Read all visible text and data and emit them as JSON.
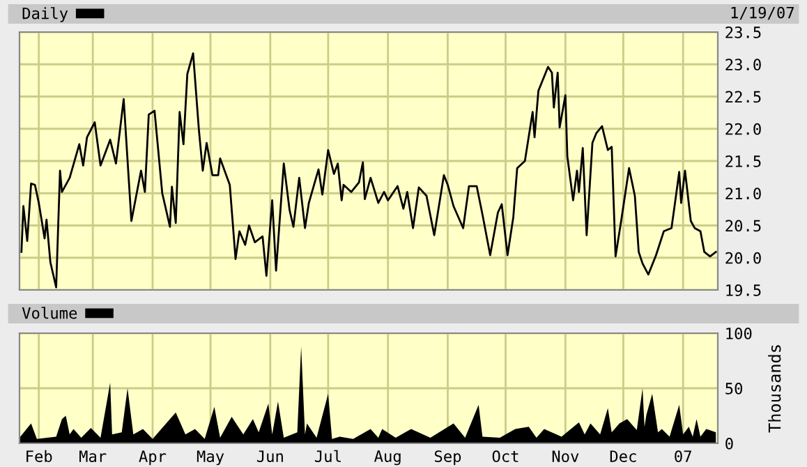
{
  "chart_data": [
    {
      "type": "line",
      "xlim": [
        "2006-01-22",
        "2007-01-19"
      ],
      "ylim": [
        19.5,
        23.5
      ],
      "yticks": [
        19.5,
        {
          "value": 20,
          "label": "20.0"
        },
        20.5,
        {
          "value": 21,
          "label": "21.0"
        },
        21.5,
        {
          "value": 22,
          "label": "22.0"
        },
        22.5,
        {
          "value": 23,
          "label": "23.0"
        },
        23.5
      ],
      "xticks": [
        {
          "value": "2006-02-01",
          "label": null
        },
        {
          "value": "2006-03-01",
          "label": null
        },
        {
          "value": "2006-04-01",
          "label": null
        },
        {
          "value": "2006-05-01",
          "label": null
        },
        {
          "value": "2006-06-01",
          "label": null
        },
        {
          "value": "2006-07-01",
          "label": null
        },
        {
          "value": "2006-08-01",
          "label": null
        },
        {
          "value": "2006-09-01",
          "label": null
        },
        {
          "value": "2006-10-01",
          "label": null
        },
        {
          "value": "2006-11-01",
          "label": null
        },
        {
          "value": "2006-12-01",
          "label": null
        },
        {
          "value": "2007-01-01",
          "label": null
        }
      ],
      "tick_labels": "y",
      "grid": true,
      "legend": "top left",
      "annotations": [
        "1/19/07"
      ],
      "series": [
        {
          "name": "Daily",
          "color": "#000000",
          "x": [
            "2006-01-23",
            "2006-01-24",
            "2006-01-26",
            "2006-01-28",
            "2006-01-30",
            "2006-02-01",
            "2006-02-04",
            "2006-02-05",
            "2006-02-07",
            "2006-02-10",
            "2006-02-12",
            "2006-02-13",
            "2006-02-17",
            "2006-02-22",
            "2006-02-24",
            "2006-02-26",
            "2006-03-02",
            "2006-03-05",
            "2006-03-10",
            "2006-03-13",
            "2006-03-17",
            "2006-03-21",
            "2006-03-26",
            "2006-03-28",
            "2006-03-30",
            "2006-04-02",
            "2006-04-06",
            "2006-04-10",
            "2006-04-11",
            "2006-04-13",
            "2006-04-15",
            "2006-04-17",
            "2006-04-19",
            "2006-04-22",
            "2006-04-25",
            "2006-04-27",
            "2006-04-29",
            "2006-05-02",
            "2006-05-05",
            "2006-05-06",
            "2006-05-11",
            "2006-05-14",
            "2006-05-16",
            "2006-05-19",
            "2006-05-21",
            "2006-05-24",
            "2006-05-28",
            "2006-05-30",
            "2006-06-02",
            "2006-06-04",
            "2006-06-08",
            "2006-06-11",
            "2006-06-13",
            "2006-06-16",
            "2006-06-19",
            "2006-06-21",
            "2006-06-26",
            "2006-06-28",
            "2006-07-01",
            "2006-07-04",
            "2006-07-06",
            "2006-07-08",
            "2006-07-09",
            "2006-07-13",
            "2006-07-17",
            "2006-07-19",
            "2006-07-20",
            "2006-07-23",
            "2006-07-27",
            "2006-07-30",
            "2006-08-01",
            "2006-08-06",
            "2006-08-09",
            "2006-08-11",
            "2006-08-14",
            "2006-08-17",
            "2006-08-21",
            "2006-08-25",
            "2006-08-30",
            "2006-09-01",
            "2006-09-04",
            "2006-09-09",
            "2006-09-12",
            "2006-09-16",
            "2006-09-19",
            "2006-09-23",
            "2006-09-27",
            "2006-09-29",
            "2006-10-02",
            "2006-10-05",
            "2006-10-07",
            "2006-10-11",
            "2006-10-15",
            "2006-10-16",
            "2006-10-18",
            "2006-10-23",
            "2006-10-25",
            "2006-10-26",
            "2006-10-28",
            "2006-10-29",
            "2006-11-01",
            "2006-11-02",
            "2006-11-05",
            "2006-11-07",
            "2006-11-08",
            "2006-11-10",
            "2006-11-12",
            "2006-11-15",
            "2006-11-17",
            "2006-11-20",
            "2006-11-23",
            "2006-11-25",
            "2006-11-27",
            "2006-11-30",
            "2006-12-04",
            "2006-12-07",
            "2006-12-09",
            "2006-12-11",
            "2006-12-14",
            "2006-12-18",
            "2006-12-22",
            "2006-12-26",
            "2006-12-28",
            "2006-12-30",
            "2006-12-31",
            "2007-01-02",
            "2007-01-05",
            "2007-01-07",
            "2007-01-10",
            "2007-01-12",
            "2007-01-15",
            "2007-01-18"
          ],
          "values": [
            20.09,
            20.8,
            20.26,
            21.15,
            21.13,
            20.85,
            20.3,
            20.59,
            19.93,
            19.54,
            21.35,
            21.02,
            21.24,
            21.76,
            21.43,
            21.87,
            22.1,
            21.43,
            21.83,
            21.46,
            22.46,
            20.57,
            21.35,
            21.02,
            22.22,
            22.28,
            21.0,
            20.48,
            21.1,
            20.54,
            22.26,
            21.76,
            22.85,
            23.17,
            21.98,
            21.35,
            21.78,
            21.28,
            21.28,
            21.54,
            21.13,
            19.98,
            20.41,
            20.2,
            20.5,
            20.24,
            20.33,
            19.72,
            20.89,
            19.8,
            21.46,
            20.74,
            20.48,
            21.24,
            20.46,
            20.85,
            21.37,
            20.98,
            21.67,
            21.3,
            21.46,
            20.89,
            21.13,
            21.02,
            21.17,
            21.48,
            20.91,
            21.24,
            20.85,
            21.02,
            20.89,
            21.11,
            20.76,
            21.02,
            20.46,
            21.09,
            20.96,
            20.35,
            21.28,
            21.13,
            20.8,
            20.46,
            21.11,
            21.11,
            20.67,
            20.04,
            20.7,
            20.83,
            20.04,
            20.63,
            21.39,
            21.5,
            22.26,
            21.87,
            22.59,
            22.96,
            22.87,
            22.33,
            22.87,
            22.02,
            22.52,
            21.57,
            20.89,
            21.35,
            21.02,
            21.7,
            20.35,
            21.78,
            21.93,
            22.04,
            21.67,
            21.72,
            20.02,
            20.59,
            21.39,
            20.96,
            20.09,
            19.91,
            19.74,
            20.04,
            20.41,
            20.46,
            20.89,
            21.33,
            20.85,
            21.35,
            20.57,
            20.46,
            20.41,
            20.09,
            20.02,
            20.09
          ]
        }
      ]
    },
    {
      "type": "area",
      "xlim": [
        "2006-01-22",
        "2007-01-19"
      ],
      "ylim": [
        0,
        100
      ],
      "yticks": [
        0,
        50,
        100
      ],
      "ylabel": "Thousands",
      "xticks": [
        {
          "value": "2006-02-01",
          "label": "Feb"
        },
        {
          "value": "2006-03-01",
          "label": "Mar"
        },
        {
          "value": "2006-04-01",
          "label": "Apr"
        },
        {
          "value": "2006-05-01",
          "label": "May"
        },
        {
          "value": "2006-06-01",
          "label": "Jun"
        },
        {
          "value": "2006-07-01",
          "label": "Jul"
        },
        {
          "value": "2006-08-01",
          "label": "Aug"
        },
        {
          "value": "2006-09-01",
          "label": "Sep"
        },
        {
          "value": "2006-10-01",
          "label": "Oct"
        },
        {
          "value": "2006-11-01",
          "label": "Nov"
        },
        {
          "value": "2006-12-01",
          "label": "Dec"
        },
        {
          "value": "2007-01-01",
          "label": "07"
        }
      ],
      "grid": true,
      "legend": "top left",
      "series": [
        {
          "name": "Volume",
          "color": "#000000",
          "x": [
            "2006-01-22",
            "2006-01-28",
            "2006-01-31",
            "2006-02-10",
            "2006-02-13",
            "2006-02-15",
            "2006-02-17",
            "2006-02-19",
            "2006-02-23",
            "2006-02-28",
            "2006-03-05",
            "2006-03-10",
            "2006-03-11",
            "2006-03-16",
            "2006-03-19",
            "2006-03-22",
            "2006-03-27",
            "2006-04-01",
            "2006-04-10",
            "2006-04-13",
            "2006-04-18",
            "2006-04-23",
            "2006-04-28",
            "2006-05-03",
            "2006-05-06",
            "2006-05-12",
            "2006-05-18",
            "2006-05-23",
            "2006-05-26",
            "2006-05-31",
            "2006-06-02",
            "2006-06-05",
            "2006-06-08",
            "2006-06-15",
            "2006-06-17",
            "2006-06-19",
            "2006-06-20",
            "2006-06-25",
            "2006-07-01",
            "2006-07-03",
            "2006-07-07",
            "2006-07-14",
            "2006-07-23",
            "2006-07-27",
            "2006-07-29",
            "2006-08-05",
            "2006-08-13",
            "2006-08-23",
            "2006-09-04",
            "2006-09-10",
            "2006-09-17",
            "2006-09-19",
            "2006-09-28",
            "2006-10-06",
            "2006-10-13",
            "2006-10-17",
            "2006-10-21",
            "2006-10-30",
            "2006-11-08",
            "2006-11-11",
            "2006-11-14",
            "2006-11-19",
            "2006-11-23",
            "2006-11-25",
            "2006-11-29",
            "2006-12-03",
            "2006-12-08",
            "2006-12-11",
            "2006-12-12",
            "2006-12-13",
            "2006-12-16",
            "2006-12-19",
            "2006-12-21",
            "2006-12-25",
            "2006-12-30",
            "2007-01-01",
            "2007-01-04",
            "2007-01-06",
            "2007-01-08",
            "2007-01-10",
            "2007-01-13",
            "2007-01-18"
          ],
          "values": [
            5,
            18,
            4,
            6,
            22,
            25,
            8,
            13,
            5,
            14,
            5,
            55,
            8,
            10,
            50,
            8,
            13,
            4,
            22,
            28,
            8,
            13,
            4,
            33,
            5,
            24,
            8,
            22,
            10,
            36,
            8,
            38,
            5,
            10,
            88,
            8,
            18,
            5,
            45,
            4,
            6,
            4,
            13,
            5,
            13,
            5,
            13,
            5,
            18,
            5,
            35,
            6,
            5,
            13,
            15,
            5,
            13,
            6,
            19,
            8,
            18,
            8,
            32,
            10,
            18,
            22,
            12,
            50,
            15,
            26,
            45,
            10,
            13,
            6,
            35,
            8,
            15,
            6,
            22,
            6,
            13,
            10
          ]
        }
      ]
    }
  ]
}
